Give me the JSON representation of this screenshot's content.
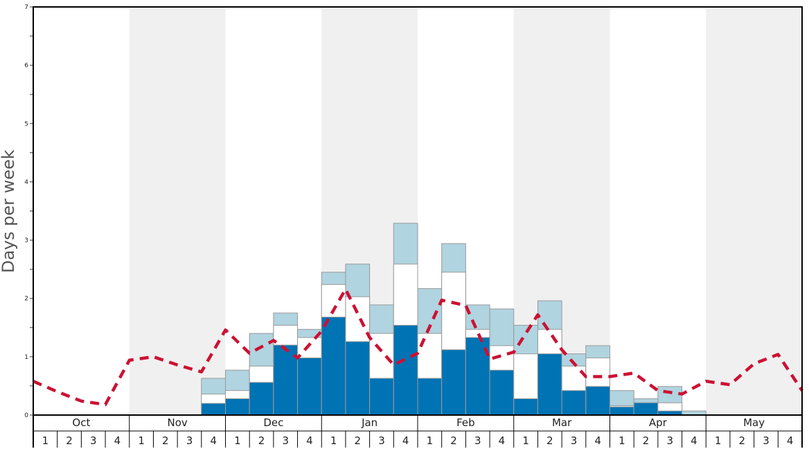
{
  "chart_data": {
    "type": "bar",
    "ylabel": "Days per week",
    "xlabel": "",
    "ylim": [
      0,
      7
    ],
    "yticks": [
      "0",
      "1",
      "2",
      "3",
      "4",
      "5",
      "6",
      "7"
    ],
    "months": [
      "Oct",
      "Nov",
      "Dec",
      "Jan",
      "Feb",
      "Mar",
      "Apr",
      "May"
    ],
    "weeks": [
      "1",
      "2",
      "3",
      "4"
    ],
    "colors": {
      "dark": "#0073b4",
      "middle": "#ffffff",
      "light": "#b0d4e0",
      "line": "#cc1133",
      "band": "#f0f0f0"
    },
    "series": [
      {
        "values": [
          0,
          0,
          0,
          0,
          0,
          0,
          0,
          0.2,
          0.28,
          0.56,
          1.2,
          0.98,
          1.68,
          1.26,
          0.63,
          1.54,
          0.63,
          1.12,
          1.33,
          0.77,
          0.28,
          1.05,
          0.42,
          0.49,
          0.14,
          0.21,
          0.07,
          0,
          0,
          0,
          0,
          0
        ]
      },
      {
        "values": [
          0,
          0,
          0,
          0,
          0,
          0,
          0,
          0.36,
          0.42,
          0.84,
          1.54,
          1.33,
          2.24,
          2.03,
          1.4,
          2.59,
          1.4,
          2.45,
          1.47,
          1.19,
          1.05,
          1.47,
          0.84,
          0.98,
          0.16,
          0.21,
          0.21,
          0,
          0,
          0,
          0,
          0
        ]
      },
      {
        "values": [
          0,
          0,
          0,
          0,
          0,
          0,
          0,
          0.63,
          0.77,
          1.4,
          1.75,
          1.47,
          2.45,
          2.59,
          1.89,
          3.29,
          2.17,
          2.94,
          1.89,
          1.82,
          1.54,
          1.96,
          1.05,
          1.19,
          0.42,
          0.28,
          0.49,
          0.07,
          0,
          0,
          0,
          0
        ]
      }
    ],
    "line": [
      0.58,
      0.4,
      0.24,
      0.18,
      0.94,
      1.0,
      0.86,
      0.74,
      1.46,
      1.06,
      1.28,
      0.98,
      1.44,
      2.16,
      1.33,
      0.86,
      1.06,
      1.97,
      1.88,
      0.96,
      1.08,
      1.72,
      1.12,
      0.66,
      0.66,
      0.72,
      0.42,
      0.36,
      0.58,
      0.52,
      0.88,
      1.04,
      0.42
    ]
  }
}
